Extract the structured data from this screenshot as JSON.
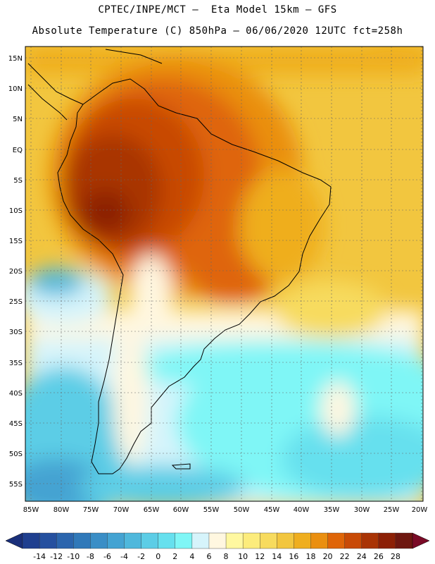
{
  "header": {
    "line1": "CPTEC/INPE/MCT –  Eta Model 15km – GFS",
    "line2": "Absolute Temperature (C) 850hPa – 06/06/2020 12UTC fct=258h"
  },
  "axes": {
    "lat_labels": [
      "15N",
      "10N",
      "5N",
      "EQ",
      "5S",
      "10S",
      "15S",
      "20S",
      "25S",
      "30S",
      "35S",
      "40S",
      "45S",
      "50S",
      "55S"
    ],
    "lon_labels": [
      "85W",
      "80W",
      "75W",
      "70W",
      "65W",
      "60W",
      "55W",
      "50W",
      "45W",
      "40W",
      "35W",
      "30W",
      "25W",
      "20W"
    ]
  },
  "colorbar": {
    "labels": [
      "-14",
      "-12",
      "-10",
      "-8",
      "-6",
      "-4",
      "-2",
      "0",
      "2",
      "4",
      "6",
      "8",
      "10",
      "12",
      "14",
      "16",
      "18",
      "20",
      "22",
      "24",
      "26",
      "28"
    ],
    "colors": [
      "#1f3f8f",
      "#25509f",
      "#2b65ad",
      "#3079b9",
      "#3a8ec6",
      "#44a3d2",
      "#4fb8dc",
      "#5ccde6",
      "#66e0ee",
      "#7ff6f6",
      "#d6f4fb",
      "#fff7e0",
      "#fff8a0",
      "#fcec7c",
      "#f7db5e",
      "#f2c63f",
      "#efae1f",
      "#ea8f10",
      "#df6508",
      "#c84a06",
      "#a93405",
      "#8c2006",
      "#6e1710"
    ],
    "below_color": "#1a2f7a",
    "above_color": "#7a0a26"
  },
  "map": {
    "ocean_color": "#f2c63f",
    "frame_color": "#000000"
  }
}
